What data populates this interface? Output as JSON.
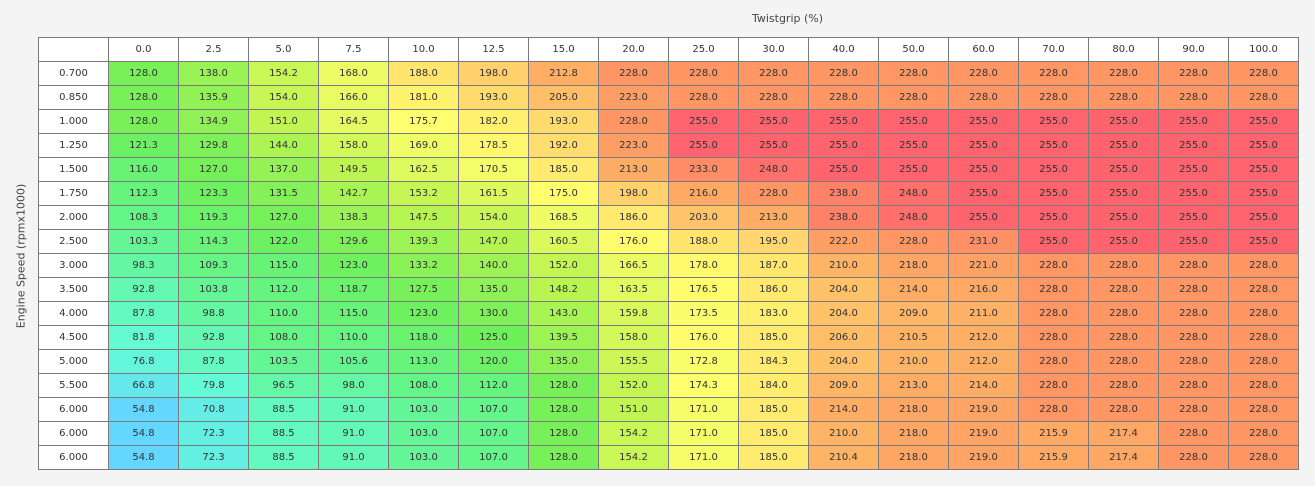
{
  "x_axis_title": "Twistgrip (%)",
  "y_axis_title": "Engine Speed (rpmx1000)",
  "columns": [
    "0.0",
    "2.5",
    "5.0",
    "7.5",
    "10.0",
    "12.5",
    "15.0",
    "20.0",
    "25.0",
    "30.0",
    "40.0",
    "50.0",
    "60.0",
    "70.0",
    "80.0",
    "90.0",
    "100.0"
  ],
  "rows": [
    {
      "label": "0.700",
      "cells": [
        "128.0",
        "138.0",
        "154.2",
        "168.0",
        "188.0",
        "198.0",
        "212.8",
        "228.0",
        "228.0",
        "228.0",
        "228.0",
        "228.0",
        "228.0",
        "228.0",
        "228.0",
        "228.0",
        "228.0"
      ]
    },
    {
      "label": "0.850",
      "cells": [
        "128.0",
        "135.9",
        "154.0",
        "166.0",
        "181.0",
        "193.0",
        "205.0",
        "223.0",
        "228.0",
        "228.0",
        "228.0",
        "228.0",
        "228.0",
        "228.0",
        "228.0",
        "228.0",
        "228.0"
      ]
    },
    {
      "label": "1.000",
      "cells": [
        "128.0",
        "134.9",
        "151.0",
        "164.5",
        "175.7",
        "182.0",
        "193.0",
        "228.0",
        "255.0",
        "255.0",
        "255.0",
        "255.0",
        "255.0",
        "255.0",
        "255.0",
        "255.0",
        "255.0"
      ]
    },
    {
      "label": "1.250",
      "cells": [
        "121.3",
        "129.8",
        "144.0",
        "158.0",
        "169.0",
        "178.5",
        "192.0",
        "223.0",
        "255.0",
        "255.0",
        "255.0",
        "255.0",
        "255.0",
        "255.0",
        "255.0",
        "255.0",
        "255.0"
      ]
    },
    {
      "label": "1.500",
      "cells": [
        "116.0",
        "127.0",
        "137.0",
        "149.5",
        "162.5",
        "170.5",
        "185.0",
        "213.0",
        "233.0",
        "248.0",
        "255.0",
        "255.0",
        "255.0",
        "255.0",
        "255.0",
        "255.0",
        "255.0"
      ]
    },
    {
      "label": "1.750",
      "cells": [
        "112.3",
        "123.3",
        "131.5",
        "142.7",
        "153.2",
        "161.5",
        "175.0",
        "198.0",
        "216.0",
        "228.0",
        "238.0",
        "248.0",
        "255.0",
        "255.0",
        "255.0",
        "255.0",
        "255.0"
      ]
    },
    {
      "label": "2.000",
      "cells": [
        "108.3",
        "119.3",
        "127.0",
        "138.3",
        "147.5",
        "154.0",
        "168.5",
        "186.0",
        "203.0",
        "213.0",
        "238.0",
        "248.0",
        "255.0",
        "255.0",
        "255.0",
        "255.0",
        "255.0"
      ]
    },
    {
      "label": "2.500",
      "cells": [
        "103.3",
        "114.3",
        "122.0",
        "129.6",
        "139.3",
        "147.0",
        "160.5",
        "176.0",
        "188.0",
        "195.0",
        "222.0",
        "228.0",
        "231.0",
        "255.0",
        "255.0",
        "255.0",
        "255.0"
      ]
    },
    {
      "label": "3.000",
      "cells": [
        "98.3",
        "109.3",
        "115.0",
        "123.0",
        "133.2",
        "140.0",
        "152.0",
        "166.5",
        "178.0",
        "187.0",
        "210.0",
        "218.0",
        "221.0",
        "228.0",
        "228.0",
        "228.0",
        "228.0"
      ]
    },
    {
      "label": "3.500",
      "cells": [
        "92.8",
        "103.8",
        "112.0",
        "118.7",
        "127.5",
        "135.0",
        "148.2",
        "163.5",
        "176.5",
        "186.0",
        "204.0",
        "214.0",
        "216.0",
        "228.0",
        "228.0",
        "228.0",
        "228.0"
      ]
    },
    {
      "label": "4.000",
      "cells": [
        "87.8",
        "98.8",
        "110.0",
        "115.0",
        "123.0",
        "130.0",
        "143.0",
        "159.8",
        "173.5",
        "183.0",
        "204.0",
        "209.0",
        "211.0",
        "228.0",
        "228.0",
        "228.0",
        "228.0"
      ]
    },
    {
      "label": "4.500",
      "cells": [
        "81.8",
        "92.8",
        "108.0",
        "110.0",
        "118.0",
        "125.0",
        "139.5",
        "158.0",
        "176.0",
        "185.0",
        "206.0",
        "210.5",
        "212.0",
        "228.0",
        "228.0",
        "228.0",
        "228.0"
      ]
    },
    {
      "label": "5.000",
      "cells": [
        "76.8",
        "87.8",
        "103.5",
        "105.6",
        "113.0",
        "120.0",
        "135.0",
        "155.5",
        "172.8",
        "184.3",
        "204.0",
        "210.0",
        "212.0",
        "228.0",
        "228.0",
        "228.0",
        "228.0"
      ]
    },
    {
      "label": "5.500",
      "cells": [
        "66.8",
        "79.8",
        "96.5",
        "98.0",
        "108.0",
        "112.0",
        "128.0",
        "152.0",
        "174.3",
        "184.0",
        "209.0",
        "213.0",
        "214.0",
        "228.0",
        "228.0",
        "228.0",
        "228.0"
      ]
    },
    {
      "label": "6.000",
      "cells": [
        "54.8",
        "70.8",
        "88.5",
        "91.0",
        "103.0",
        "107.0",
        "128.0",
        "151.0",
        "171.0",
        "185.0",
        "214.0",
        "218.0",
        "219.0",
        "228.0",
        "228.0",
        "228.0",
        "228.0"
      ]
    },
    {
      "label": "6.000",
      "cells": [
        "54.8",
        "72.3",
        "88.5",
        "91.0",
        "103.0",
        "107.0",
        "128.0",
        "154.2",
        "171.0",
        "185.0",
        "210.0",
        "218.0",
        "219.0",
        "215.9",
        "217.4",
        "228.0",
        "228.0"
      ]
    },
    {
      "label": "6.000",
      "cells": [
        "54.8",
        "72.3",
        "88.5",
        "91.0",
        "103.0",
        "107.0",
        "128.0",
        "154.2",
        "171.0",
        "185.0",
        "210.4",
        "218.0",
        "219.0",
        "215.9",
        "217.4",
        "228.0",
        "228.0"
      ]
    }
  ]
}
